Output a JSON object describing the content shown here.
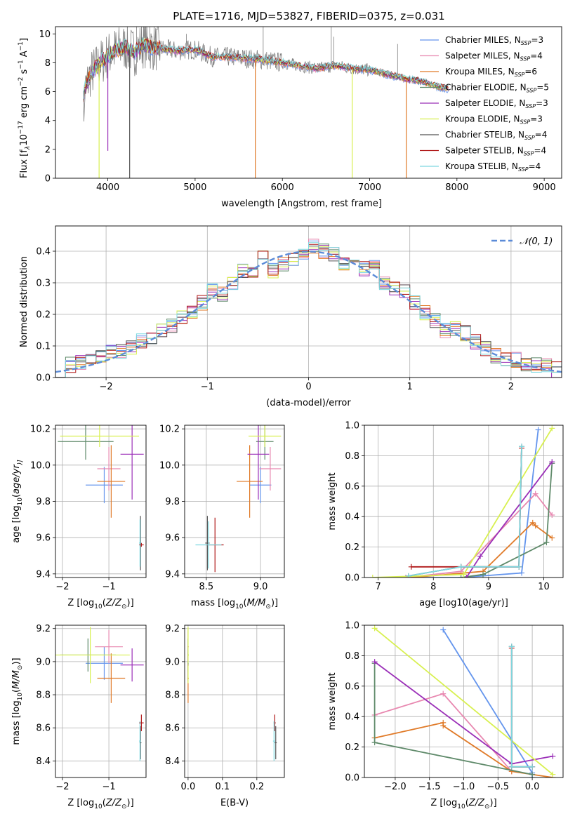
{
  "figure": {
    "title": "PLATE=1716, MJD=53827, FIBERID=0375, z=0.031"
  },
  "series": [
    {
      "name": "Chabrier MILES",
      "nssp": "3",
      "color": "#6495ed"
    },
    {
      "name": "Salpeter MILES",
      "nssp": "4",
      "color": "#e888b0"
    },
    {
      "name": "Kroupa MILES",
      "nssp": "6",
      "color": "#e07a28"
    },
    {
      "name": "Chabrier ELODIE",
      "nssp": "5",
      "color": "#5f8a6a"
    },
    {
      "name": "Salpeter ELODIE",
      "nssp": "3",
      "color": "#9b30b8"
    },
    {
      "name": "Kroupa ELODIE",
      "nssp": "3",
      "color": "#d8f050"
    },
    {
      "name": "Chabrier STELIB",
      "nssp": "4",
      "color": "#555555"
    },
    {
      "name": "Salpeter STELIB",
      "nssp": "4",
      "color": "#b01818"
    },
    {
      "name": "Kroupa STELIB",
      "nssp": "4",
      "color": "#7ed8e0"
    }
  ],
  "chart_data": [
    {
      "id": "spectrum",
      "type": "line",
      "xlabel": "wavelength [Angstrom, rest frame]",
      "ylabel_parts": [
        "Flux [f",
        "λ",
        "10",
        "−17",
        " erg cm",
        "−2",
        " s",
        "−1",
        " A",
        "−1",
        "]"
      ],
      "xlim": [
        3400,
        9200
      ],
      "ylim": [
        0,
        10.5
      ],
      "xticks": [
        4000,
        5000,
        6000,
        7000,
        8000,
        9000
      ],
      "yticks": [
        0,
        2,
        4,
        6,
        8,
        10
      ],
      "data_color": "#808080",
      "continuum_x": [
        3700,
        3800,
        3900,
        4000,
        4100,
        4200,
        4300,
        4400,
        4500,
        4600,
        4700,
        4800,
        4900,
        5000,
        5200,
        5400,
        5600,
        5800,
        6000,
        6200,
        6400,
        6600,
        6800,
        7000,
        7200,
        7400,
        7600,
        7700,
        7800,
        7900
      ],
      "continuum_y": [
        5.5,
        7.2,
        7.9,
        8.5,
        8.9,
        9.1,
        8.7,
        9.3,
        9.1,
        9.0,
        8.9,
        8.8,
        8.9,
        8.9,
        8.4,
        8.4,
        8.3,
        8.2,
        8.0,
        7.8,
        7.6,
        7.8,
        7.6,
        7.5,
        7.2,
        6.9,
        6.7,
        6.5,
        6.3,
        6.2
      ],
      "dips": [
        {
          "x": 3900,
          "y": 0,
          "series": 5
        },
        {
          "x": 4000,
          "y": 1.9,
          "series": 4
        },
        {
          "x": 4250,
          "y": 0,
          "series": 6
        },
        {
          "x": 5690,
          "y": 0,
          "series": 2
        },
        {
          "x": 6800,
          "y": 0,
          "series": 5
        },
        {
          "x": 7420,
          "y": 0,
          "series": 2
        }
      ],
      "legend_position": "upper right"
    },
    {
      "id": "residuals",
      "type": "histogram",
      "xlabel": "(data-model)/error",
      "ylabel": "Normed distribution",
      "xlim": [
        -2.5,
        2.5
      ],
      "ylim": [
        0,
        0.48
      ],
      "xticks": [
        -2,
        -1,
        0,
        1,
        2
      ],
      "yticks": [
        0.0,
        0.1,
        0.2,
        0.3,
        0.4
      ],
      "grid": true,
      "bin_width": 0.1,
      "bin_centers": [
        -2.45,
        -2.35,
        -2.25,
        -2.15,
        -2.05,
        -1.95,
        -1.85,
        -1.75,
        -1.65,
        -1.55,
        -1.45,
        -1.35,
        -1.25,
        -1.15,
        -1.05,
        -0.95,
        -0.85,
        -0.75,
        -0.65,
        -0.55,
        -0.45,
        -0.35,
        -0.25,
        -0.15,
        -0.05,
        0.05,
        0.15,
        0.25,
        0.35,
        0.45,
        0.55,
        0.65,
        0.75,
        0.85,
        0.95,
        1.05,
        1.15,
        1.25,
        1.35,
        1.45,
        1.55,
        1.65,
        1.75,
        1.85,
        1.95,
        2.05,
        2.15,
        2.25,
        2.35,
        2.45
      ],
      "hist_values": [
        0.025,
        0.04,
        0.045,
        0.05,
        0.06,
        0.085,
        0.08,
        0.095,
        0.115,
        0.125,
        0.145,
        0.165,
        0.195,
        0.205,
        0.235,
        0.275,
        0.265,
        0.3,
        0.335,
        0.33,
        0.38,
        0.34,
        0.36,
        0.375,
        0.4,
        0.415,
        0.4,
        0.39,
        0.36,
        0.385,
        0.345,
        0.35,
        0.3,
        0.285,
        0.27,
        0.235,
        0.205,
        0.18,
        0.15,
        0.155,
        0.14,
        0.115,
        0.09,
        0.07,
        0.06,
        0.055,
        0.045,
        0.04,
        0.035,
        0.025
      ],
      "reference_curve": {
        "name": "𝒩(0, 1)",
        "color": "#5b8bd8",
        "style": "dashed"
      },
      "legend_position": "upper right"
    },
    {
      "id": "age_vs_Z",
      "type": "scatter",
      "xlabel_parts": [
        "Z [log",
        "10",
        "(",
        "Z/Z",
        "⊙",
        ")]"
      ],
      "ylabel_parts": [
        "age  [log",
        "10",
        "(",
        "age/yr",
        ")]"
      ],
      "xlim": [
        -2.15,
        -0.2
      ],
      "ylim": [
        9.38,
        10.22
      ],
      "xticks": [
        -2,
        -1
      ],
      "yticks": [
        9.4,
        9.6,
        9.8,
        10.0,
        10.2
      ],
      "grid": true,
      "points": [
        {
          "x": -1.1,
          "y": 9.89,
          "xerr": 0.4,
          "yerr": 0.1,
          "series": 0
        },
        {
          "x": -1.0,
          "y": 9.98,
          "xerr": 0.25,
          "yerr": 0.12,
          "series": 1
        },
        {
          "x": -0.95,
          "y": 9.91,
          "xerr": 0.3,
          "yerr": 0.2,
          "series": 2
        },
        {
          "x": -1.5,
          "y": 10.13,
          "xerr": 0.6,
          "yerr": 0.1,
          "series": 3
        },
        {
          "x": -0.5,
          "y": 10.06,
          "xerr": 0.25,
          "yerr": 0.25,
          "series": 4
        },
        {
          "x": -1.2,
          "y": 10.16,
          "xerr": 0.85,
          "yerr": 0.06,
          "series": 5
        },
        {
          "x": -0.32,
          "y": 9.57,
          "xerr": 0.02,
          "yerr": 0.15,
          "series": 6
        },
        {
          "x": -0.3,
          "y": 9.56,
          "xerr": 0.05,
          "yerr": 0.01,
          "series": 7
        },
        {
          "x": -0.33,
          "y": 9.57,
          "xerr": 0.02,
          "yerr": 0.13,
          "series": 8
        }
      ]
    },
    {
      "id": "age_vs_mass",
      "type": "scatter",
      "xlabel_parts": [
        "mass [log",
        "10",
        "(",
        "M/M",
        "⊙",
        ")]"
      ],
      "xlim": [
        8.3,
        9.22
      ],
      "ylim": [
        9.38,
        10.22
      ],
      "xticks": [
        8.5,
        9.0
      ],
      "yticks": [
        9.4,
        9.6,
        9.8,
        10.0,
        10.2
      ],
      "grid": true,
      "points": [
        {
          "x": 9.0,
          "y": 9.89,
          "xerr": 0.1,
          "yerr": 0.1,
          "series": 0
        },
        {
          "x": 9.09,
          "y": 9.98,
          "xerr": 0.1,
          "yerr": 0.12,
          "series": 1
        },
        {
          "x": 8.9,
          "y": 9.91,
          "xerr": 0.12,
          "yerr": 0.2,
          "series": 2
        },
        {
          "x": 9.04,
          "y": 10.13,
          "xerr": 0.08,
          "yerr": 0.1,
          "series": 3
        },
        {
          "x": 8.98,
          "y": 10.06,
          "xerr": 0.1,
          "yerr": 0.25,
          "series": 4
        },
        {
          "x": 9.04,
          "y": 10.16,
          "xerr": 0.15,
          "yerr": 0.06,
          "series": 5
        },
        {
          "x": 8.51,
          "y": 9.57,
          "xerr": 0.02,
          "yerr": 0.15,
          "series": 6
        },
        {
          "x": 8.58,
          "y": 9.56,
          "xerr": 0.08,
          "yerr": 0.15,
          "series": 7
        },
        {
          "x": 8.52,
          "y": 9.56,
          "xerr": 0.12,
          "yerr": 0.13,
          "series": 8
        }
      ]
    },
    {
      "id": "weight_vs_age",
      "type": "line",
      "xlabel_parts": [
        "age  [log",
        "10",
        "(",
        "age/yr",
        ")]"
      ],
      "ylabel": "mass weight",
      "xlim": [
        6.75,
        10.35
      ],
      "ylim": [
        0,
        1.0
      ],
      "xticks": [
        7,
        8,
        9,
        10
      ],
      "yticks": [
        0.0,
        0.2,
        0.4,
        0.6,
        0.8,
        1.0
      ],
      "grid": true,
      "series": [
        {
          "series": 0,
          "x": [
            7.5,
            8.5,
            9.6,
            9.9
          ],
          "y": [
            0.0,
            0.0,
            0.03,
            0.97
          ]
        },
        {
          "series": 1,
          "x": [
            7.5,
            8.5,
            9.85,
            10.15
          ],
          "y": [
            0.0,
            0.04,
            0.55,
            0.41
          ]
        },
        {
          "series": 2,
          "x": [
            7.6,
            8.9,
            9.8,
            9.85,
            10.15
          ],
          "y": [
            0.0,
            0.04,
            0.36,
            0.34,
            0.26
          ]
        },
        {
          "series": 3,
          "x": [
            8.5,
            8.9,
            10.05,
            10.15
          ],
          "y": [
            0.0,
            0.02,
            0.23,
            0.75
          ]
        },
        {
          "series": 4,
          "x": [
            8.6,
            8.85,
            10.15
          ],
          "y": [
            0.0,
            0.14,
            0.76
          ]
        },
        {
          "series": 5,
          "x": [
            6.9,
            8.55,
            10.15
          ],
          "y": [
            0.0,
            0.02,
            0.98
          ]
        },
        {
          "series": 6,
          "x": [
            7.55,
            8.5,
            9.55,
            9.6
          ],
          "y": [
            0.01,
            0.07,
            0.07,
            0.86
          ]
        },
        {
          "series": 7,
          "x": [
            7.6,
            8.5,
            9.55,
            9.6
          ],
          "y": [
            0.07,
            0.07,
            0.07,
            0.85
          ]
        },
        {
          "series": 8,
          "x": [
            7.55,
            8.5,
            9.55,
            9.6
          ],
          "y": [
            0.01,
            0.07,
            0.07,
            0.86
          ]
        }
      ]
    },
    {
      "id": "mass_vs_Z",
      "type": "scatter",
      "xlabel_parts": [
        "Z [log",
        "10",
        "(",
        "Z/Z",
        "⊙",
        ")]"
      ],
      "ylabel_parts": [
        "mass [log",
        "10",
        "(",
        "M/M",
        "⊙",
        ")]"
      ],
      "xlim": [
        -2.15,
        -0.2
      ],
      "ylim": [
        8.3,
        9.22
      ],
      "xticks": [
        -2,
        -1
      ],
      "yticks": [
        8.4,
        8.6,
        8.8,
        9.0,
        9.2
      ],
      "grid": true,
      "points": [
        {
          "x": -1.1,
          "y": 8.99,
          "xerr": 0.4,
          "yerr": 0.1,
          "series": 0
        },
        {
          "x": -1.0,
          "y": 9.09,
          "xerr": 0.3,
          "yerr": 0.1,
          "series": 1
        },
        {
          "x": -0.95,
          "y": 8.9,
          "xerr": 0.3,
          "yerr": 0.15,
          "series": 2
        },
        {
          "x": -1.45,
          "y": 9.04,
          "xerr": 0.6,
          "yerr": 0.1,
          "series": 3
        },
        {
          "x": -0.5,
          "y": 8.98,
          "xerr": 0.25,
          "yerr": 0.1,
          "series": 4
        },
        {
          "x": -1.4,
          "y": 9.04,
          "xerr": 0.85,
          "yerr": 0.17,
          "series": 5
        },
        {
          "x": -0.32,
          "y": 8.51,
          "xerr": 0.02,
          "yerr": 0.1,
          "series": 6
        },
        {
          "x": -0.3,
          "y": 8.63,
          "xerr": 0.05,
          "yerr": 0.05,
          "series": 7
        },
        {
          "x": -0.33,
          "y": 8.52,
          "xerr": 0.02,
          "yerr": 0.12,
          "series": 8
        }
      ]
    },
    {
      "id": "mass_vs_EBV",
      "type": "scatter",
      "xlabel": "E(B-V)",
      "xlim": [
        -0.01,
        0.28
      ],
      "ylim": [
        8.3,
        9.22
      ],
      "xticks": [
        0.0,
        0.1,
        0.2
      ],
      "yticks": [
        8.4,
        8.6,
        8.8,
        9.0,
        9.2
      ],
      "grid": true,
      "points": [
        {
          "x": 0.0,
          "y": 8.99,
          "xerr": 0.002,
          "yerr": 0.1,
          "series": 0
        },
        {
          "x": 0.0,
          "y": 9.09,
          "xerr": 0.002,
          "yerr": 0.1,
          "series": 1
        },
        {
          "x": 0.0,
          "y": 8.9,
          "xerr": 0.002,
          "yerr": 0.15,
          "series": 2
        },
        {
          "x": 0.0,
          "y": 9.04,
          "xerr": 0.002,
          "yerr": 0.1,
          "series": 3
        },
        {
          "x": 0.0,
          "y": 8.98,
          "xerr": 0.002,
          "yerr": 0.1,
          "series": 4
        },
        {
          "x": 0.0,
          "y": 9.04,
          "xerr": 0.002,
          "yerr": 0.17,
          "series": 5
        },
        {
          "x": 0.255,
          "y": 8.51,
          "xerr": 0.003,
          "yerr": 0.1,
          "series": 6
        },
        {
          "x": 0.252,
          "y": 8.63,
          "xerr": 0.003,
          "yerr": 0.05,
          "series": 7
        },
        {
          "x": 0.25,
          "y": 8.52,
          "xerr": 0.003,
          "yerr": 0.12,
          "series": 8
        }
      ]
    },
    {
      "id": "weight_vs_Z",
      "type": "line",
      "xlabel_parts": [
        "Z [log",
        "10",
        "(",
        "Z/Z",
        "⊙",
        ")]"
      ],
      "ylabel": "mass weight",
      "xlim": [
        -2.45,
        0.45
      ],
      "ylim": [
        0,
        1.0
      ],
      "xticks": [
        -2.0,
        -1.5,
        -1.0,
        -0.5,
        0.0
      ],
      "xtick_labels": [
        "−2.0",
        "−1.5",
        "−1.0",
        "−0.5",
        "0.0"
      ],
      "yticks": [
        0.0,
        0.2,
        0.4,
        0.6,
        0.8,
        1.0
      ],
      "grid": true,
      "series": [
        {
          "series": 0,
          "x": [
            -1.3,
            0.0,
            0.0
          ],
          "y": [
            0.97,
            0.03,
            0.0
          ]
        },
        {
          "series": 1,
          "x": [
            -2.3,
            -1.3,
            -0.3
          ],
          "y": [
            0.41,
            0.55,
            0.04
          ]
        },
        {
          "series": 2,
          "x": [
            -2.3,
            -1.3,
            -1.3,
            -0.3,
            0.3
          ],
          "y": [
            0.26,
            0.36,
            0.34,
            0.04,
            0.0
          ]
        },
        {
          "series": 3,
          "x": [
            -2.3,
            -2.3,
            0.0
          ],
          "y": [
            0.75,
            0.23,
            0.02
          ]
        },
        {
          "series": 4,
          "x": [
            -2.3,
            -0.3,
            0.3
          ],
          "y": [
            0.76,
            0.09,
            0.14
          ]
        },
        {
          "series": 5,
          "x": [
            -2.3,
            0.3
          ],
          "y": [
            0.98,
            0.02
          ]
        },
        {
          "series": 6,
          "x": [
            -0.3,
            -0.3,
            0.0
          ],
          "y": [
            0.86,
            0.07,
            0.07
          ]
        },
        {
          "series": 7,
          "x": [
            -0.3,
            -0.3,
            0.0
          ],
          "y": [
            0.85,
            0.07,
            0.07
          ]
        },
        {
          "series": 8,
          "x": [
            -0.3,
            -0.3,
            0.0
          ],
          "y": [
            0.86,
            0.07,
            0.07
          ]
        }
      ]
    }
  ]
}
